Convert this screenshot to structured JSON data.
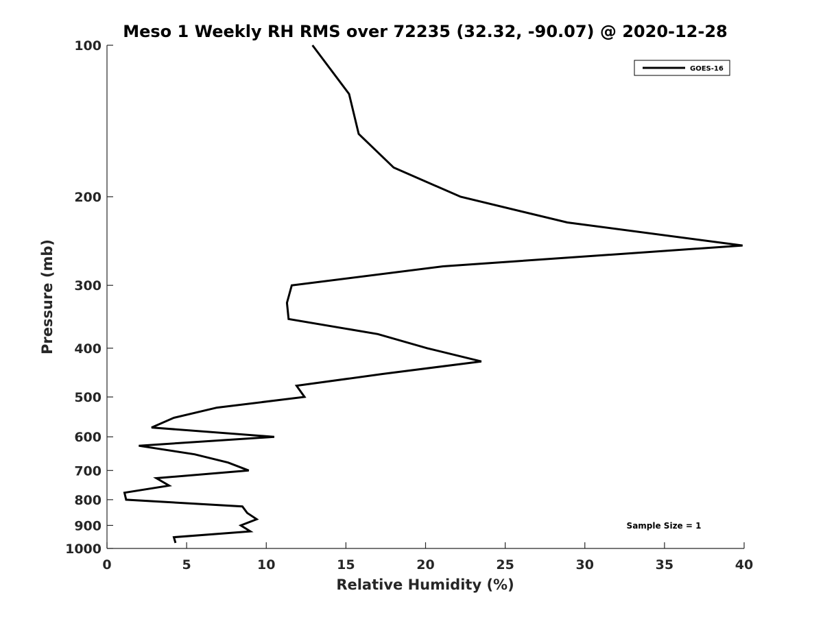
{
  "chart_data": {
    "type": "line",
    "title": "Meso 1 Weekly RH RMS over 72235 (32.32, -90.07) @ 2020-12-28",
    "xlabel": "Relative Humidity (%)",
    "ylabel": "Pressure (mb)",
    "xlim": [
      0,
      40
    ],
    "ylim": [
      100,
      1000
    ],
    "y_scale": "log",
    "y_reversed": true,
    "x_ticks": [
      0,
      5,
      10,
      15,
      20,
      25,
      30,
      35,
      40
    ],
    "y_ticks": [
      100,
      200,
      300,
      400,
      500,
      600,
      700,
      800,
      900,
      1000
    ],
    "grid": false,
    "legend_position": "top-right",
    "annotation": "Sample Size = 1",
    "line_color": "#000000",
    "series": [
      {
        "name": "GOES-16",
        "points": [
          {
            "x": 12.9,
            "p": 100
          },
          {
            "x": 15.2,
            "p": 125
          },
          {
            "x": 15.8,
            "p": 150
          },
          {
            "x": 18.0,
            "p": 175
          },
          {
            "x": 22.2,
            "p": 200
          },
          {
            "x": 28.9,
            "p": 225
          },
          {
            "x": 39.9,
            "p": 250
          },
          {
            "x": 21.1,
            "p": 275
          },
          {
            "x": 11.6,
            "p": 300
          },
          {
            "x": 11.3,
            "p": 325
          },
          {
            "x": 11.4,
            "p": 350
          },
          {
            "x": 17.0,
            "p": 375
          },
          {
            "x": 20.1,
            "p": 400
          },
          {
            "x": 23.5,
            "p": 425
          },
          {
            "x": 17.3,
            "p": 450
          },
          {
            "x": 11.9,
            "p": 475
          },
          {
            "x": 12.4,
            "p": 500
          },
          {
            "x": 6.9,
            "p": 525
          },
          {
            "x": 4.2,
            "p": 550
          },
          {
            "x": 2.8,
            "p": 575
          },
          {
            "x": 10.5,
            "p": 600
          },
          {
            "x": 2.0,
            "p": 625
          },
          {
            "x": 5.5,
            "p": 650
          },
          {
            "x": 7.6,
            "p": 675
          },
          {
            "x": 8.9,
            "p": 700
          },
          {
            "x": 3.1,
            "p": 725
          },
          {
            "x": 3.9,
            "p": 750
          },
          {
            "x": 1.1,
            "p": 775
          },
          {
            "x": 1.2,
            "p": 800
          },
          {
            "x": 8.5,
            "p": 825
          },
          {
            "x": 8.8,
            "p": 850
          },
          {
            "x": 9.4,
            "p": 875
          },
          {
            "x": 8.4,
            "p": 900
          },
          {
            "x": 9.0,
            "p": 925
          },
          {
            "x": 4.2,
            "p": 950
          },
          {
            "x": 4.3,
            "p": 975
          }
        ]
      }
    ]
  }
}
